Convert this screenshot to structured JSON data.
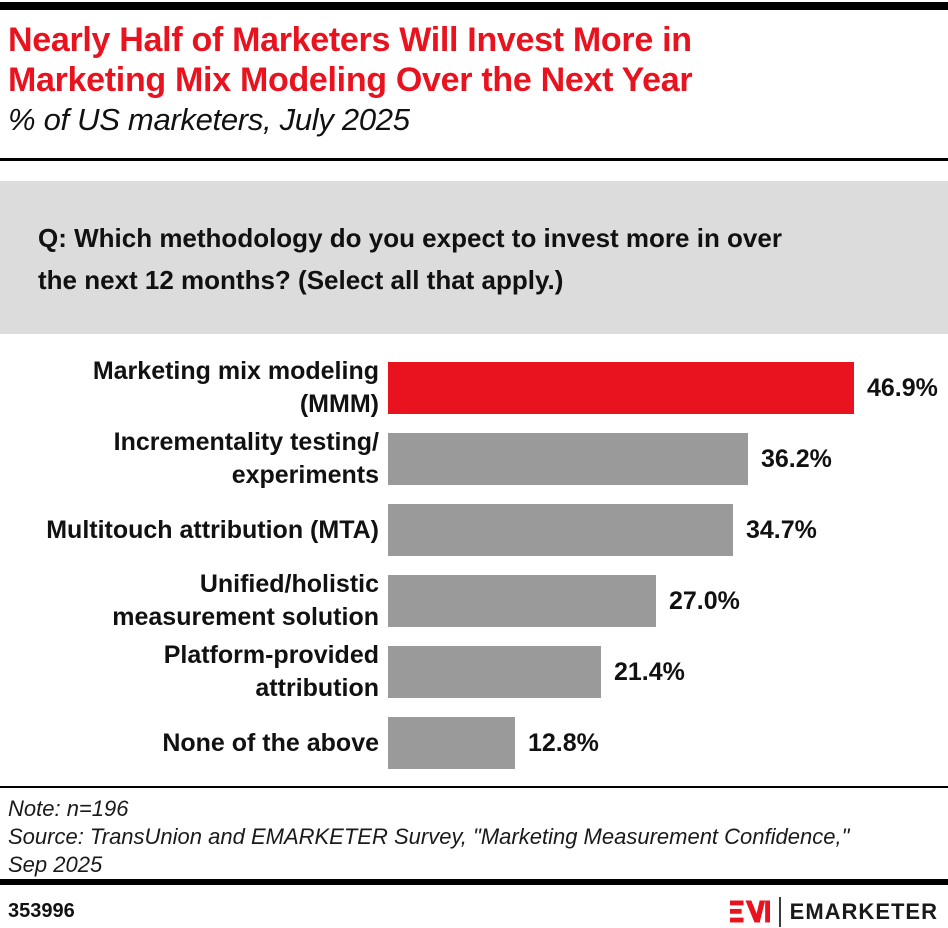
{
  "colors": {
    "accent_red": "#e8131e",
    "bar_gray": "#9a9a9a",
    "question_box_bg": "#dcdcdc",
    "text": "#111111",
    "rule": "#000000"
  },
  "header": {
    "title_lines": [
      "Nearly Half of Marketers Will Invest More in",
      "Marketing Mix Modeling Over the Next Year"
    ],
    "subtitle": "% of US marketers, July 2025"
  },
  "question": {
    "lines": [
      "Q: Which methodology do you expect to invest more in over",
      "the next 12 months? (Select all that apply.)"
    ]
  },
  "chart_data": {
    "type": "bar",
    "orientation": "horizontal",
    "title": "Nearly Half of Marketers Will Invest More in Marketing Mix Modeling Over the Next Year",
    "subtitle": "% of US marketers, July 2025",
    "question": "Q: Which methodology do you expect to invest more in over the next 12 months? (Select all that apply.)",
    "units": "%",
    "categories": [
      "Marketing mix modeling (MMM)",
      "Incrementality testing/experiments",
      "Multitouch attribution (MTA)",
      "Unified/holistic measurement solution",
      "Platform-provided attribution",
      "None of the above"
    ],
    "label_lines": [
      [
        "Marketing mix modeling",
        "(MMM)"
      ],
      [
        "Incrementality testing/",
        "experiments"
      ],
      [
        "Multitouch attribution (MTA)"
      ],
      [
        "Unified/holistic",
        "measurement solution"
      ],
      [
        "Platform-provided",
        "attribution"
      ],
      [
        "None of the above"
      ]
    ],
    "values": [
      46.9,
      36.2,
      34.7,
      27.0,
      21.4,
      12.8
    ],
    "value_labels": [
      "46.9%",
      "36.2%",
      "34.7%",
      "27.0%",
      "21.4%",
      "12.8%"
    ],
    "bar_colors": [
      "#e8131e",
      "#9a9a9a",
      "#9a9a9a",
      "#9a9a9a",
      "#9a9a9a",
      "#9a9a9a"
    ],
    "highlight_index": 0,
    "xlim": [
      0,
      50
    ],
    "grid": false,
    "legend": false
  },
  "footnote": {
    "lines": [
      "Note: n=196",
      "Source: TransUnion and EMARKETER Survey, \"Marketing Measurement Confidence,\"",
      "Sep 2025"
    ]
  },
  "footer": {
    "chart_id": "353996",
    "brand": "EMARKETER",
    "logo_monogram": "EM"
  }
}
